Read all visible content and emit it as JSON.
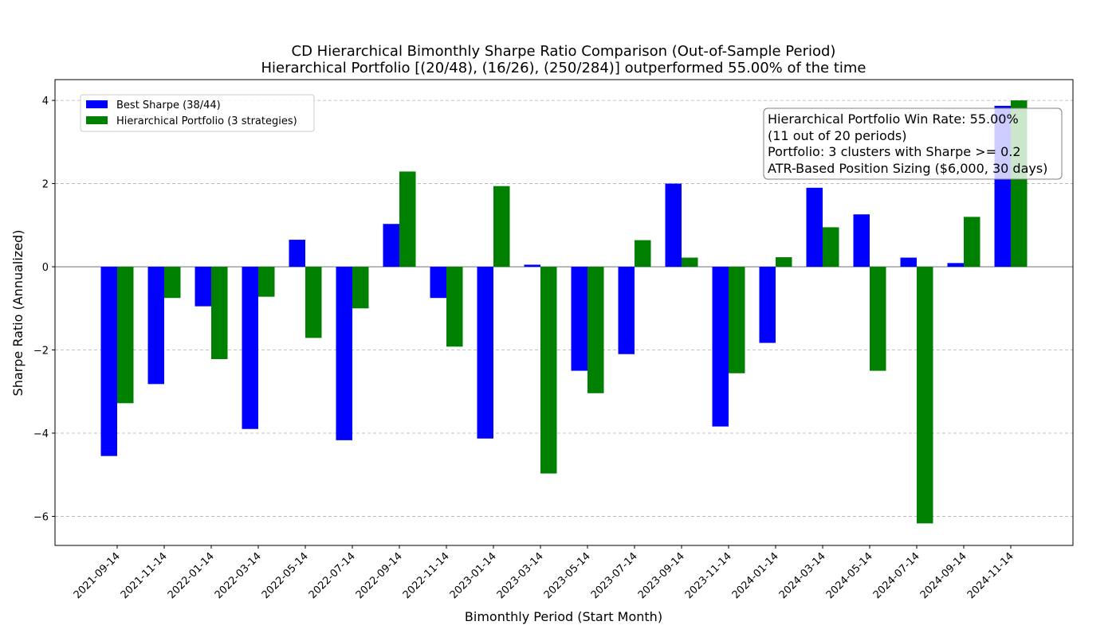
{
  "chart_data": {
    "type": "bar",
    "title": "CD Hierarchical Bimonthly Sharpe Ratio Comparison (Out-of-Sample Period)",
    "subtitle": "Hierarchical Portfolio [(20/48), (16/26), (250/284)] outperformed 55.00% of the time",
    "xlabel": "Bimonthly Period (Start Month)",
    "ylabel": "Sharpe Ratio (Annualized)",
    "ylim": [
      -6.7,
      4.5
    ],
    "yticks": [
      4,
      2,
      0,
      -2,
      -4,
      -6
    ],
    "ytick_labels": [
      "4",
      "2",
      "0",
      "−2",
      "−4",
      "−6"
    ],
    "grid": "y-dashed",
    "legend_position": "top-left",
    "categories": [
      "2021-09-14",
      "2021-11-14",
      "2022-01-14",
      "2022-03-14",
      "2022-05-14",
      "2022-07-14",
      "2022-09-14",
      "2022-11-14",
      "2023-01-14",
      "2023-03-14",
      "2023-05-14",
      "2023-07-14",
      "2023-09-14",
      "2023-11-14",
      "2024-01-14",
      "2024-03-14",
      "2024-05-14",
      "2024-07-14",
      "2024-09-14",
      "2024-11-14"
    ],
    "series": [
      {
        "name": "Best Sharpe (38/44)",
        "color": "#0000ff",
        "values": [
          -4.55,
          -2.82,
          -0.95,
          -3.9,
          0.65,
          -4.17,
          1.03,
          -0.75,
          -4.13,
          0.05,
          -2.5,
          -2.1,
          2.0,
          -3.84,
          -1.83,
          1.9,
          1.26,
          0.22,
          0.09,
          3.87
        ]
      },
      {
        "name": "Hierarchical Portfolio (3 strategies)",
        "color": "#008000",
        "values": [
          -3.28,
          -0.75,
          -2.22,
          -0.72,
          -1.71,
          -1.0,
          2.29,
          -1.92,
          1.94,
          -4.97,
          -3.04,
          0.64,
          0.22,
          -2.56,
          0.23,
          0.95,
          -2.5,
          -6.17,
          1.2,
          4.0
        ]
      }
    ],
    "annotation": {
      "lines": [
        "Hierarchical Portfolio Win Rate: 55.00%",
        "(11 out of 20 periods)",
        "Portfolio: 3 clusters with Sharpe >= 0.2",
        "ATR-Based Position Sizing ($6,000, 30 days)"
      ],
      "position": "top-right"
    }
  }
}
